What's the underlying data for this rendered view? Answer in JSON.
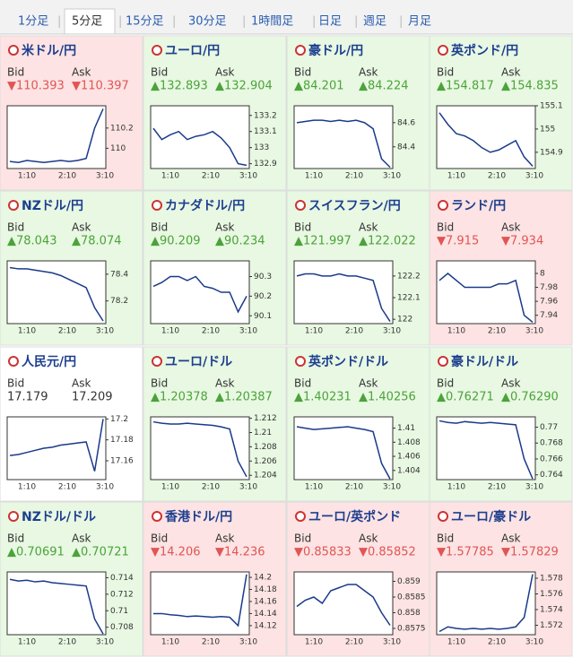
{
  "tabs": [
    "1分足",
    "5分足",
    "15分足",
    "30分足",
    "1時間足",
    "日足",
    "週足",
    "月足"
  ],
  "active_tab": 1,
  "bid_label": "Bid",
  "ask_label": "Ask",
  "time_labels": [
    "1:10",
    "2:10",
    "3:10"
  ],
  "panels": [
    {
      "name": "米ドル/円",
      "trend": "down",
      "bid": "▼110.393",
      "ask": "▼110.397",
      "ylim": [
        109.8,
        110.42
      ],
      "yticks": [
        110.2,
        110
      ],
      "values": [
        109.87,
        109.86,
        109.88,
        109.87,
        109.86,
        109.87,
        109.88,
        109.87,
        109.88,
        109.9,
        110.2,
        110.39
      ]
    },
    {
      "name": "ユーロ/円",
      "trend": "up",
      "bid": "▲132.893",
      "ask": "▲132.904",
      "ylim": [
        132.87,
        133.26
      ],
      "yticks": [
        133.2,
        133.1,
        133,
        132.9
      ],
      "values": [
        133.12,
        133.05,
        133.08,
        133.1,
        133.05,
        133.07,
        133.08,
        133.1,
        133.06,
        133.0,
        132.9,
        132.89
      ]
    },
    {
      "name": "豪ドル/円",
      "trend": "up",
      "bid": "▲84.201",
      "ask": "▲84.224",
      "ylim": [
        84.22,
        84.74
      ],
      "yticks": [
        84.6,
        84.4
      ],
      "values": [
        84.6,
        84.61,
        84.62,
        84.62,
        84.61,
        84.62,
        84.61,
        84.62,
        84.6,
        84.55,
        84.3,
        84.23
      ]
    },
    {
      "name": "英ポンド/円",
      "trend": "up",
      "bid": "▲154.817",
      "ask": "▲154.835",
      "ylim": [
        154.83,
        155.1
      ],
      "yticks": [
        155.1,
        155,
        154.9
      ],
      "values": [
        155.07,
        155.02,
        154.98,
        154.97,
        154.95,
        154.92,
        154.9,
        154.91,
        154.93,
        154.95,
        154.88,
        154.84
      ]
    },
    {
      "name": "NZドル/円",
      "trend": "up",
      "bid": "▲78.043",
      "ask": "▲78.074",
      "ylim": [
        78.03,
        78.5
      ],
      "yticks": [
        78.4,
        78.2
      ],
      "values": [
        78.45,
        78.44,
        78.44,
        78.43,
        78.42,
        78.41,
        78.39,
        78.36,
        78.33,
        78.3,
        78.15,
        78.05
      ]
    },
    {
      "name": "カナダドル/円",
      "trend": "up",
      "bid": "▲90.209",
      "ask": "▲90.234",
      "ylim": [
        90.06,
        90.38
      ],
      "yticks": [
        90.3,
        90.2,
        90.1
      ],
      "values": [
        90.25,
        90.27,
        90.3,
        90.3,
        90.28,
        90.3,
        90.25,
        90.24,
        90.22,
        90.22,
        90.12,
        90.2
      ]
    },
    {
      "name": "スイスフラン/円",
      "trend": "up",
      "bid": "▲121.997",
      "ask": "▲122.022",
      "ylim": [
        121.98,
        122.27
      ],
      "yticks": [
        122.2,
        122.1,
        122
      ],
      "values": [
        122.2,
        122.21,
        122.21,
        122.2,
        122.2,
        122.21,
        122.2,
        122.2,
        122.19,
        122.18,
        122.05,
        121.99
      ]
    },
    {
      "name": "ランド/円",
      "trend": "down",
      "bid": "▼7.915",
      "ask": "▼7.934",
      "ylim": [
        7.928,
        8.018
      ],
      "yticks": [
        8,
        7.98,
        7.96,
        7.94
      ],
      "values": [
        7.99,
        8.0,
        7.99,
        7.98,
        7.98,
        7.98,
        7.98,
        7.985,
        7.985,
        7.99,
        7.94,
        7.93
      ]
    },
    {
      "name": "人民元/円",
      "trend": "none",
      "bid": "17.179",
      "ask": "17.209",
      "ylim": [
        17.142,
        17.202
      ],
      "yticks": [
        17.2,
        17.18,
        17.16
      ],
      "values": [
        17.165,
        17.166,
        17.168,
        17.17,
        17.172,
        17.173,
        17.175,
        17.176,
        17.177,
        17.178,
        17.15,
        17.2
      ]
    },
    {
      "name": "ユーロ/ドル",
      "trend": "up",
      "bid": "▲1.20378",
      "ask": "▲1.20387",
      "ylim": [
        1.2034,
        1.2122
      ],
      "yticks": [
        1.212,
        1.21,
        1.208,
        1.206,
        1.204
      ],
      "values": [
        1.2115,
        1.2113,
        1.2112,
        1.2112,
        1.2113,
        1.2112,
        1.2111,
        1.211,
        1.2108,
        1.2105,
        1.206,
        1.2038
      ]
    },
    {
      "name": "英ポンド/ドル",
      "trend": "up",
      "bid": "▲1.40231",
      "ask": "▲1.40256",
      "ylim": [
        1.4027,
        1.4116
      ],
      "yticks": [
        1.41,
        1.408,
        1.406,
        1.404
      ],
      "values": [
        1.4102,
        1.41,
        1.4098,
        1.4099,
        1.41,
        1.4101,
        1.4102,
        1.41,
        1.4098,
        1.4095,
        1.405,
        1.4028
      ]
    },
    {
      "name": "豪ドル/ドル",
      "trend": "up",
      "bid": "▲0.76271",
      "ask": "▲0.76290",
      "ylim": [
        0.7634,
        0.7713
      ],
      "yticks": [
        0.77,
        0.768,
        0.766,
        0.764
      ],
      "values": [
        0.7708,
        0.7706,
        0.7705,
        0.7707,
        0.7706,
        0.7705,
        0.7706,
        0.7705,
        0.7704,
        0.7703,
        0.766,
        0.7635
      ]
    },
    {
      "name": "NZドル/ドル",
      "trend": "up",
      "bid": "▲0.70691",
      "ask": "▲0.70721",
      "ylim": [
        0.7071,
        0.7147
      ],
      "yticks": [
        0.714,
        0.712,
        0.71,
        0.708
      ],
      "values": [
        0.7138,
        0.7136,
        0.7137,
        0.7135,
        0.7136,
        0.7134,
        0.7133,
        0.7132,
        0.7131,
        0.713,
        0.709,
        0.7072
      ]
    },
    {
      "name": "香港ドル/円",
      "trend": "down",
      "bid": "▼14.206",
      "ask": "▼14.236",
      "ylim": [
        14.105,
        14.209
      ],
      "yticks": [
        14.2,
        14.18,
        14.16,
        14.14,
        14.12
      ],
      "values": [
        14.14,
        14.14,
        14.138,
        14.137,
        14.135,
        14.136,
        14.135,
        14.134,
        14.135,
        14.134,
        14.12,
        14.205
      ]
    },
    {
      "name": "ユーロ/英ポンド",
      "trend": "down",
      "bid": "▼0.85833",
      "ask": "▼0.85852",
      "ylim": [
        0.8573,
        0.8593
      ],
      "yticks": [
        0.859,
        0.8585,
        0.858,
        0.8575
      ],
      "values": [
        0.8582,
        0.8584,
        0.8585,
        0.8583,
        0.8587,
        0.8588,
        0.8589,
        0.8589,
        0.8587,
        0.8585,
        0.858,
        0.8576
      ]
    },
    {
      "name": "ユーロ/豪ドル",
      "trend": "down",
      "bid": "▼1.57785",
      "ask": "▼1.57829",
      "ylim": [
        1.5708,
        1.5788
      ],
      "yticks": [
        1.578,
        1.576,
        1.574,
        1.572
      ],
      "values": [
        1.5712,
        1.5718,
        1.5716,
        1.5715,
        1.5716,
        1.5715,
        1.5716,
        1.5715,
        1.5716,
        1.5718,
        1.573,
        1.5785
      ]
    }
  ]
}
